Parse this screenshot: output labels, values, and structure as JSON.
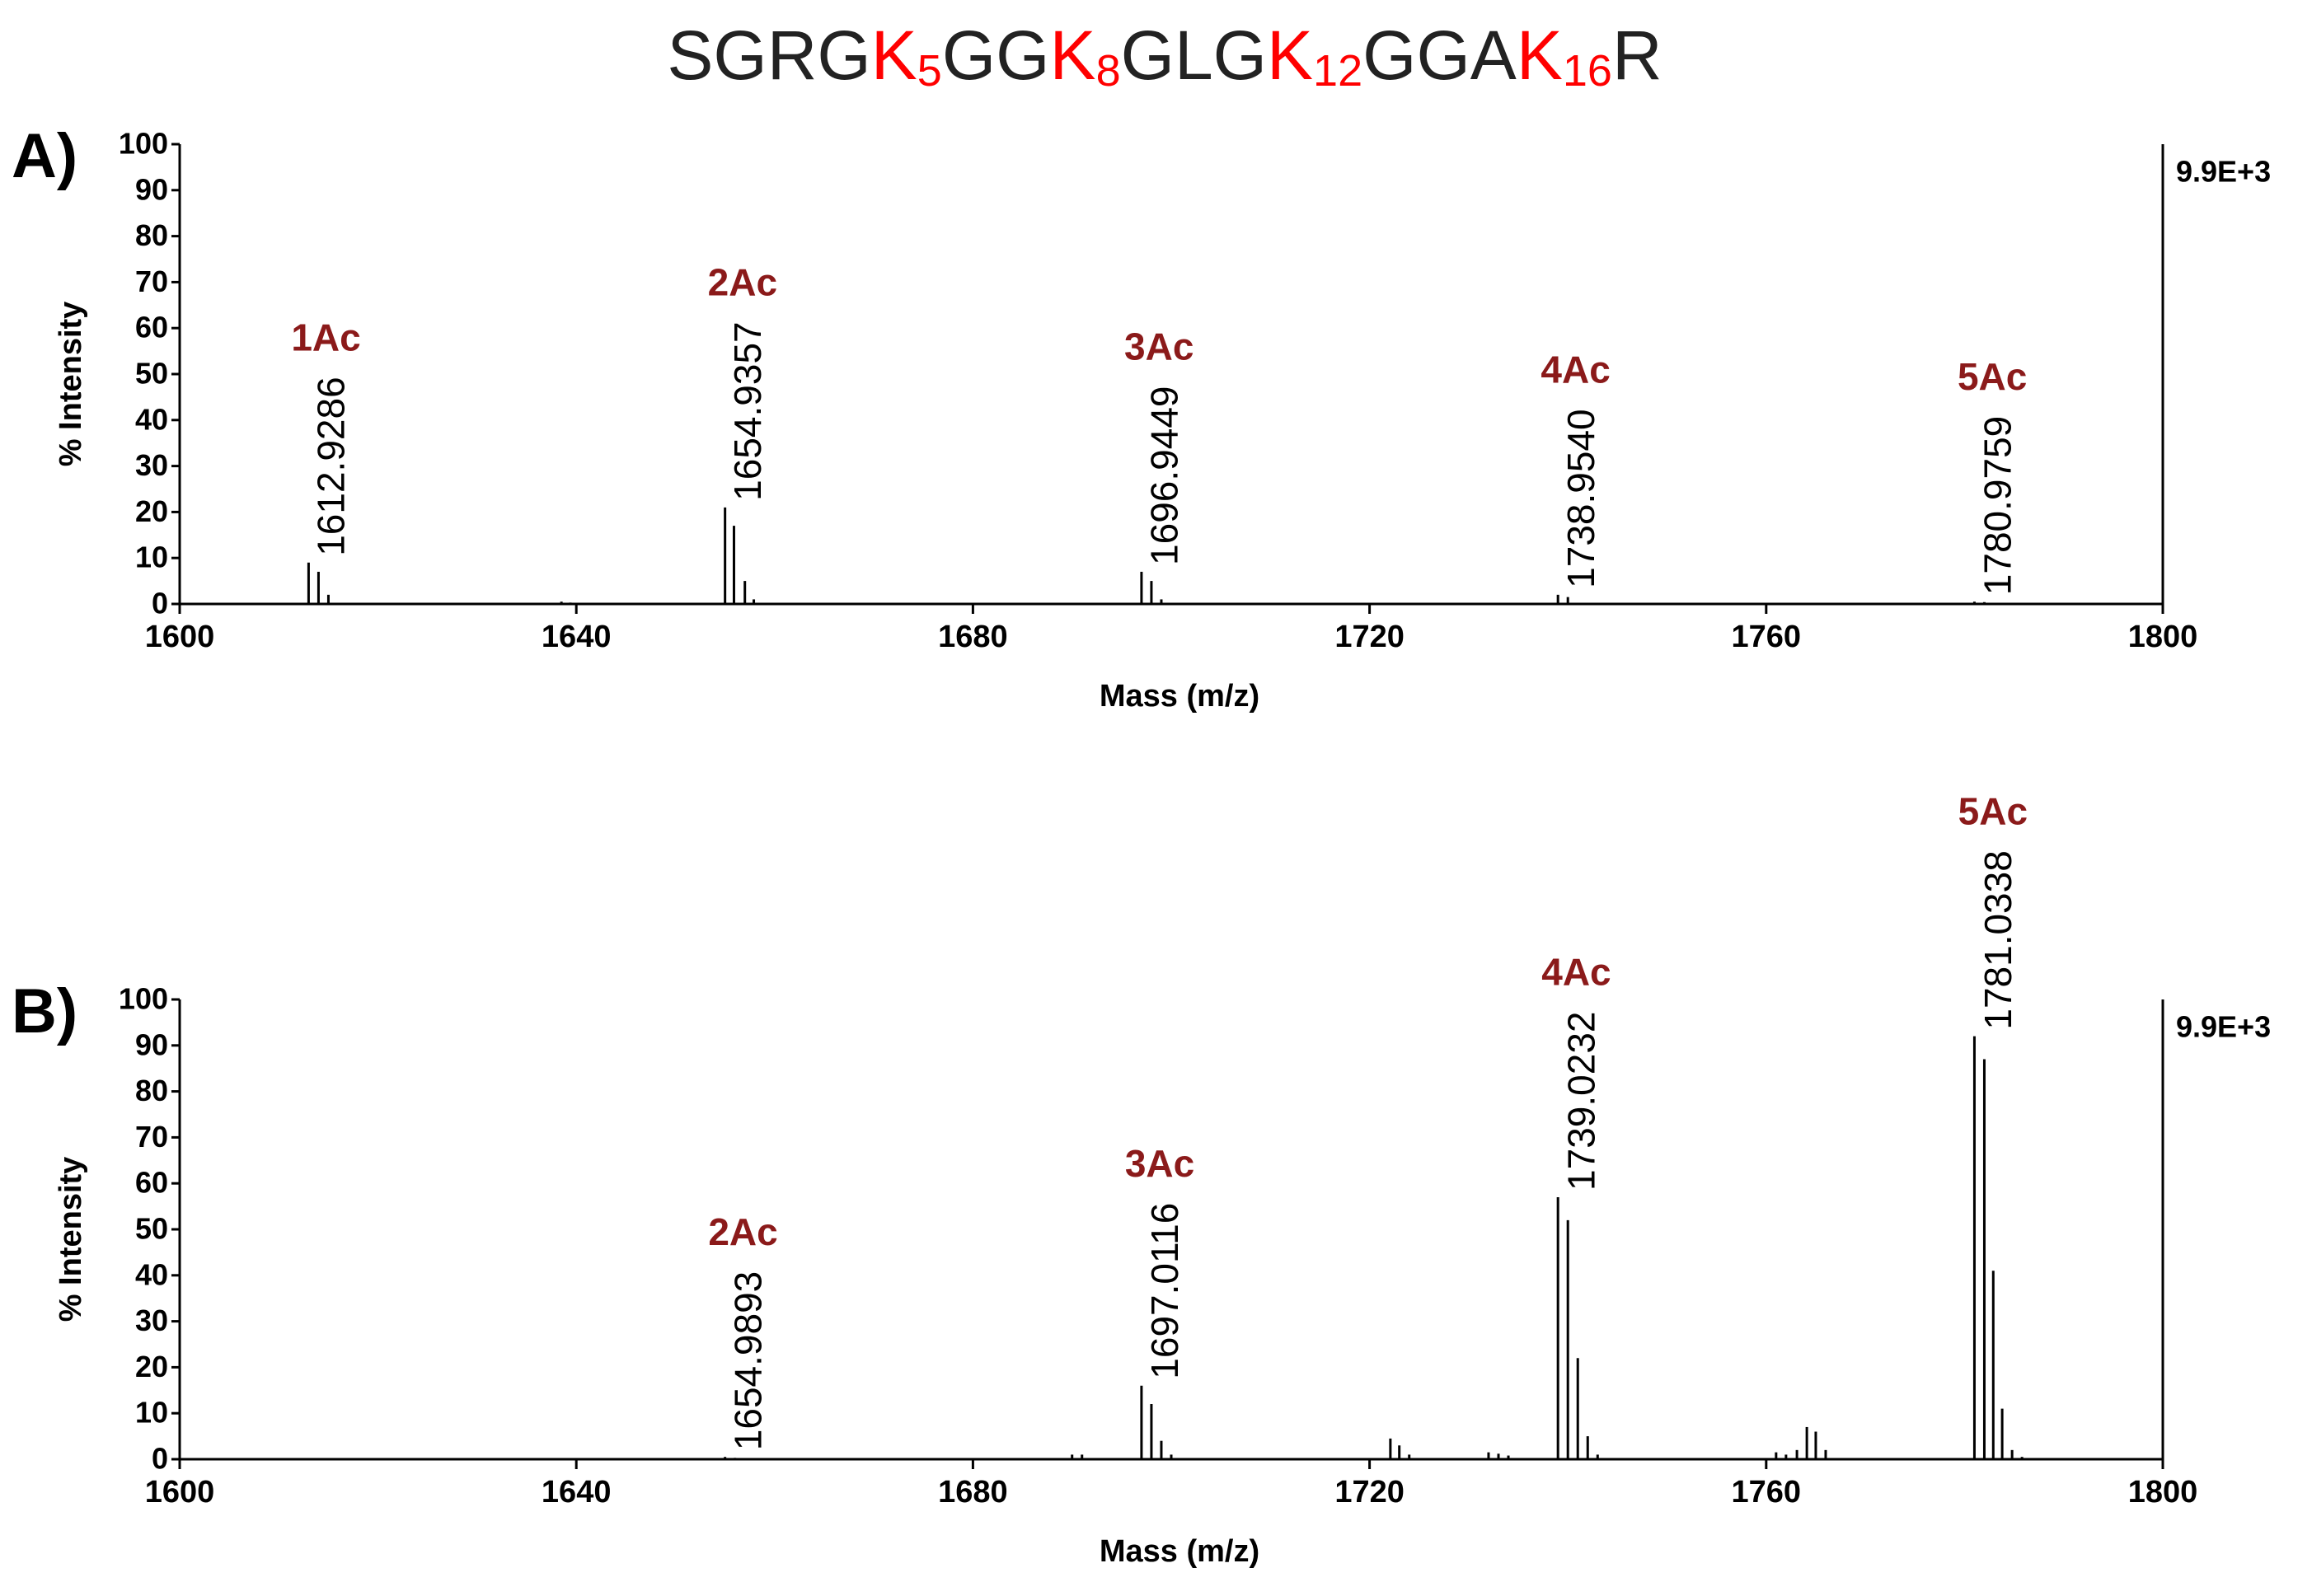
{
  "title": [
    {
      "text": "SGRG"
    },
    {
      "text": "K",
      "sub": "5",
      "color": "#ff0000"
    },
    {
      "text": "GG"
    },
    {
      "text": "K",
      "sub": "8",
      "color": "#ff0000"
    },
    {
      "text": "GLG"
    },
    {
      "text": "K",
      "sub": "12",
      "color": "#ff0000"
    },
    {
      "text": "GGA"
    },
    {
      "text": "K",
      "sub": "16",
      "color": "#ff0000"
    },
    {
      "text": "R"
    }
  ],
  "chart_data": [
    {
      "type": "spectrum",
      "panel": "A)",
      "xlabel": "Mass (m/z)",
      "ylabel": "% Intensity",
      "intensity": "9.9E+3",
      "color": "#000000",
      "tag_color": "#8b1a1a",
      "xlim": [
        1600,
        1800
      ],
      "xticks": [
        1600,
        1640,
        1680,
        1720,
        1760,
        1800
      ],
      "ylim": [
        0,
        100
      ],
      "yticks": [
        0,
        10,
        20,
        30,
        40,
        50,
        60,
        70,
        80,
        90,
        100
      ],
      "x": [
        1613.0,
        1614.0,
        1615.0,
        1638.5,
        1639.4,
        1655.0,
        1655.9,
        1657.0,
        1657.9,
        1697.0,
        1698.0,
        1699.0,
        1739.0,
        1740.0,
        1781.0,
        1782.0
      ],
      "values": [
        9,
        7,
        2,
        0.5,
        0.3,
        21,
        17,
        5,
        1,
        7,
        5,
        1,
        2,
        1.5,
        0.5,
        0.4
      ],
      "annotations": [
        {
          "x": 1612.9286,
          "label": "1612.9286",
          "tag": "1Ac"
        },
        {
          "x": 1654.9357,
          "label": "1654.9357",
          "tag": "2Ac"
        },
        {
          "x": 1696.9449,
          "label": "1696.9449",
          "tag": "3Ac"
        },
        {
          "x": 1738.954,
          "label": "1738.9540",
          "tag": "4Ac"
        },
        {
          "x": 1780.9759,
          "label": "1780.9759",
          "tag": "5Ac"
        }
      ]
    },
    {
      "type": "spectrum",
      "panel": "B)",
      "xlabel": "Mass (m/z)",
      "ylabel": "% Intensity",
      "intensity": "9.9E+3",
      "color": "#000000",
      "tag_color": "#8b1a1a",
      "xlim": [
        1600,
        1800
      ],
      "xticks": [
        1600,
        1640,
        1680,
        1720,
        1760,
        1800
      ],
      "ylim": [
        0,
        100
      ],
      "yticks": [
        0,
        10,
        20,
        30,
        40,
        50,
        60,
        70,
        80,
        90,
        100
      ],
      "x": [
        1655.0,
        1656.0,
        1690.0,
        1691.0,
        1697.0,
        1698.0,
        1699.0,
        1700.0,
        1722.1,
        1723.0,
        1724.0,
        1732.0,
        1733.0,
        1734.0,
        1739.0,
        1740.0,
        1741.0,
        1742.0,
        1743.0,
        1761.0,
        1762.0,
        1763.1,
        1764.1,
        1765.0,
        1766.0,
        1781.0,
        1782.0,
        1782.9,
        1783.8,
        1784.8,
        1785.8
      ],
      "values": [
        0.5,
        0.3,
        1,
        1,
        16,
        12,
        4,
        1,
        4.5,
        3,
        1,
        1.5,
        1.2,
        0.8,
        57,
        52,
        22,
        5,
        1,
        1.5,
        1,
        2,
        7,
        6,
        2,
        92,
        87,
        41,
        11,
        2,
        0.5
      ],
      "annotations": [
        {
          "x": 1654.9893,
          "label": "1654.9893",
          "tag": "2Ac"
        },
        {
          "x": 1697.0116,
          "label": "1697.0116",
          "tag": "3Ac"
        },
        {
          "x": 1739.0232,
          "label": "1739.0232",
          "tag": "4Ac"
        },
        {
          "x": 1781.0338,
          "label": "1781.0338",
          "tag": "5Ac"
        }
      ]
    }
  ]
}
